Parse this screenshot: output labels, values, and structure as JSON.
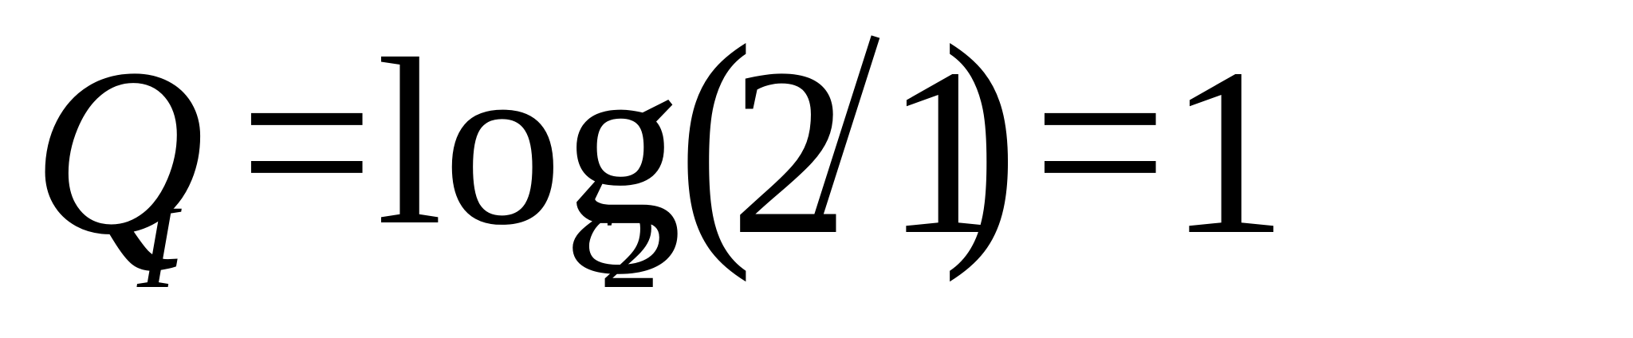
{
  "formula": {
    "lhs_symbol": "Q",
    "lhs_subscript": "I",
    "equals_1": "=",
    "function": "log",
    "log_base": "2",
    "open_paren": "(",
    "numerator": "2",
    "divisor_symbol": "/",
    "denominator": "1",
    "close_paren": ")",
    "equals_2": "=",
    "result": "1"
  }
}
